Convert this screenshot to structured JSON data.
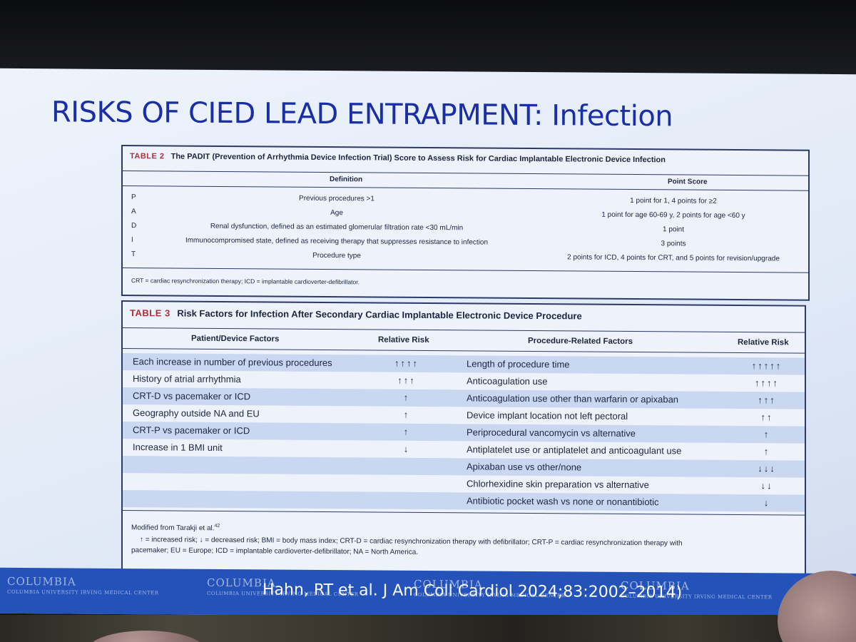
{
  "slide": {
    "title": "RISKS OF CIED LEAD ENTRAPMENT: Infection",
    "citation": "Hahn, RT et al. J Am Coll Cardiol 2024;83:2002–2014)",
    "logos": [
      {
        "name": "COLUMBIA",
        "sub": "COLUMBIA UNIVERSITY IRVING MEDICAL CENTER"
      },
      {
        "name": "COLUMBIA",
        "sub": "COLUMBIA UNIVERSITY IRVING MEDICAL CENTER"
      },
      {
        "name": "COLUMBIA",
        "sub": "COLUMBIA UNIVERSITY IRVING MEDICAL CENTER"
      },
      {
        "name": "COLUMBIA",
        "sub": "COLUMBIA UNIVERSITY IRVING MEDICAL CENTER"
      }
    ]
  },
  "table2": {
    "label": "TABLE 2",
    "caption": "The PADIT (Prevention of Arrhythmia Device Infection Trial) Score to Assess Risk for Cardiac Implantable Electronic Device Infection",
    "headers": {
      "definition": "Definition",
      "score": "Point Score"
    },
    "rows": [
      {
        "letter": "P",
        "definition": "Previous procedures >1",
        "score": "1 point for 1, 4 points for ≥2"
      },
      {
        "letter": "A",
        "definition": "Age",
        "score": "1 point for age 60-69 y, 2 points for age <60 y"
      },
      {
        "letter": "D",
        "definition": "Renal dysfunction, defined as an estimated glomerular filtration rate <30 mL/min",
        "score": "1 point"
      },
      {
        "letter": "I",
        "definition": "Immunocompromised state, defined as receiving therapy that suppresses resistance to infection",
        "score": "3 points"
      },
      {
        "letter": "T",
        "definition": "Procedure type",
        "score": "2 points for ICD, 4 points for CRT, and 5 points for revision/upgrade"
      }
    ],
    "footnote": "CRT = cardiac resynchronization therapy; ICD = implantable cardioverter-defibrillator."
  },
  "table3": {
    "label": "TABLE 3",
    "caption": "Risk Factors for Infection After Secondary Cardiac Implantable Electronic Device Procedure",
    "headers": {
      "patient": "Patient/Device Factors",
      "risk1": "Relative Risk",
      "procedure": "Procedure-Related Factors",
      "risk2": "Relative Risk"
    },
    "rows": [
      {
        "patient": "Each increase in number of previous procedures",
        "risk1": "↑↑↑↑",
        "procedure": "Length of procedure time",
        "risk2": "↑↑↑↑↑"
      },
      {
        "patient": "History of atrial arrhythmia",
        "risk1": "↑↑↑",
        "procedure": "Anticoagulation use",
        "risk2": "↑↑↑↑"
      },
      {
        "patient": "CRT-D vs pacemaker or ICD",
        "risk1": "↑",
        "procedure": "Anticoagulation use other than warfarin or apixaban",
        "risk2": "↑↑↑"
      },
      {
        "patient": "Geography outside NA and EU",
        "risk1": "↑",
        "procedure": "Device implant location not left pectoral",
        "risk2": "↑↑"
      },
      {
        "patient": "CRT-P vs pacemaker or ICD",
        "risk1": "↑",
        "procedure": "Periprocedural vancomycin vs alternative",
        "risk2": "↑"
      },
      {
        "patient": "Increase in 1 BMI unit",
        "risk1": "↓",
        "procedure": "Antiplatelet use or antiplatelet and anticoagulant use",
        "risk2": "↑"
      },
      {
        "patient": "",
        "risk1": "",
        "procedure": "Apixaban use vs other/none",
        "risk2": "↓↓↓"
      },
      {
        "patient": "",
        "risk1": "",
        "procedure": "Chlorhexidine skin preparation vs alternative",
        "risk2": "↓↓"
      },
      {
        "patient": "",
        "risk1": "",
        "procedure": "Antibiotic pocket wash vs none or nonantibiotic",
        "risk2": "↓"
      }
    ],
    "modified": "Modified from Tarakji et al.",
    "modified_ref": "42",
    "footnote_line1": "↑ = increased risk; ↓ = decreased risk; BMI = body mass index; CRT-D = cardiac resynchronization therapy with defibrillator; CRT-P = cardiac resynchronization therapy with",
    "footnote_line2": "pacemaker; EU = Europe; ICD = implantable cardioverter-defibrillator; NA = North America."
  }
}
